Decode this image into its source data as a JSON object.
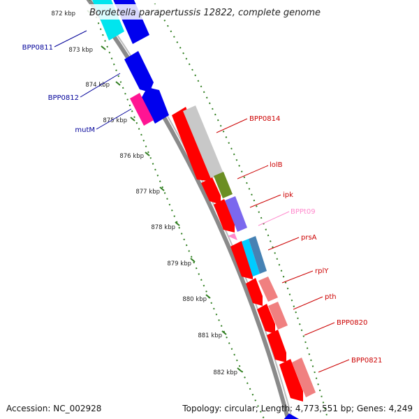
{
  "title": "Bordetella parapertussis 12822, complete genome",
  "footer": {
    "accession": "Accession: NC_002928",
    "summary": "Topology: circular; Length: 4,773,551 bp; Genes: 4,249"
  },
  "colors": {
    "backbone": "#8a8a8a",
    "tick": "#2e7d1e",
    "label_reverse": "#000099",
    "label_forward": "#cc0000",
    "label_rna": "#ff88cc"
  },
  "ticks": [
    "872 kbp",
    "873 kbp",
    "874 kbp",
    "875 kbp",
    "876 kbp",
    "877 kbp",
    "878 kbp",
    "879 kbp",
    "880 kbp",
    "881 kbp",
    "882 kbp"
  ],
  "genes_reverse": [
    {
      "label": "BPP0811",
      "color": "#0000ee"
    },
    {
      "label": "BPP0812",
      "color": "#0000ee"
    },
    {
      "label": "mutM",
      "color": "#0000ee"
    }
  ],
  "genes_forward": [
    {
      "label": "BPP0814",
      "color": "#ff0000"
    },
    {
      "label": "lolB",
      "color": "#ff0000"
    },
    {
      "label": "ipk",
      "color": "#ff0000"
    },
    {
      "label": "BPPt09",
      "color": "#ff88cc"
    },
    {
      "label": "prsA",
      "color": "#ff0000"
    },
    {
      "label": "rplY",
      "color": "#ff0000"
    },
    {
      "label": "pth",
      "color": "#ff0000"
    },
    {
      "label": "BPP0820",
      "color": "#ff0000"
    },
    {
      "label": "BPP0821",
      "color": "#ff0000"
    }
  ],
  "cog_colors": [
    "#00ffff",
    "#ff1493",
    "#c0c0c0",
    "#6b8e23",
    "#7b68ee",
    "#4682b4",
    "#f08080"
  ]
}
